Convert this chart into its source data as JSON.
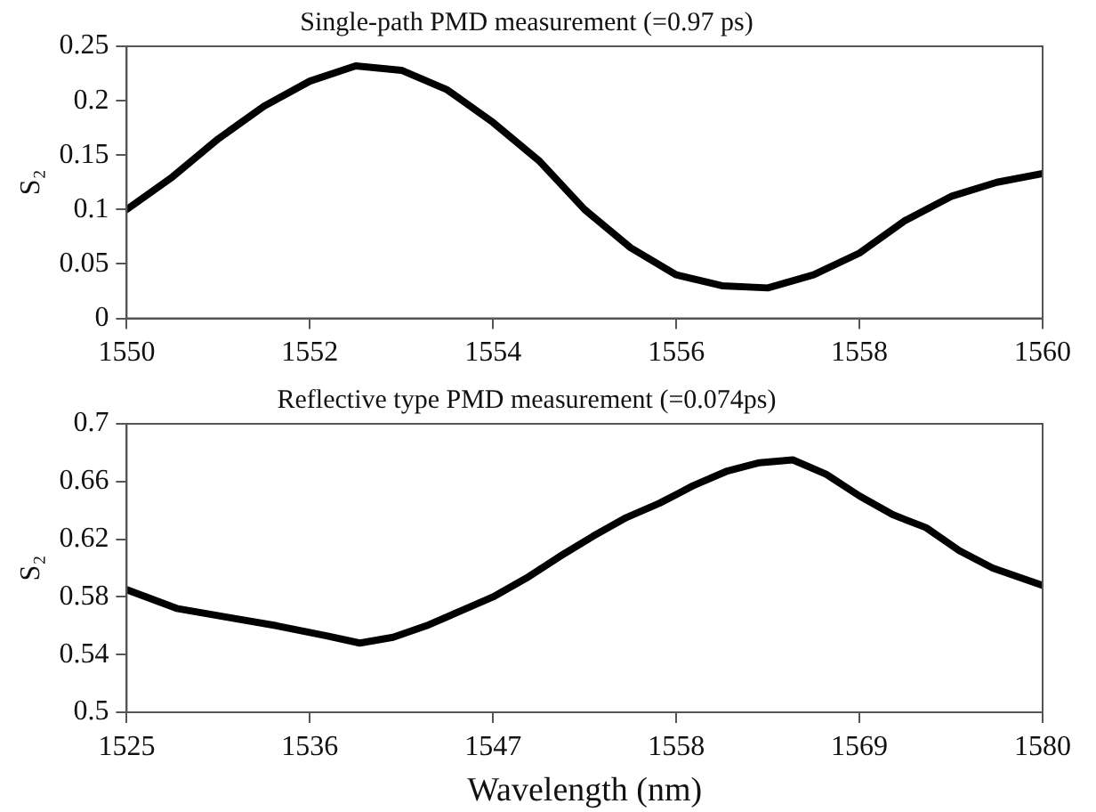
{
  "chart_data": [
    {
      "type": "line",
      "title": "Single-path PMD measurement (=0.97 ps)",
      "ylabel": "S₂",
      "xlim": [
        1550,
        1560
      ],
      "xticks": [
        1550,
        1552,
        1554,
        1556,
        1558,
        1560
      ],
      "ylim": [
        0,
        0.25
      ],
      "yticks": [
        0,
        0.05,
        0.1,
        0.15,
        0.2,
        0.25
      ],
      "grid": false,
      "legend": false,
      "marker": "none",
      "line_style": "solid",
      "x": [
        1550,
        1550.5,
        1551,
        1551.5,
        1552,
        1552.5,
        1553,
        1553.5,
        1554,
        1554.5,
        1555,
        1555.5,
        1556,
        1556.5,
        1557,
        1557.5,
        1558,
        1558.5,
        1559,
        1559.5,
        1560
      ],
      "series": [
        {
          "color": "#000000",
          "values": [
            0.1,
            0.13,
            0.165,
            0.195,
            0.218,
            0.232,
            0.228,
            0.21,
            0.18,
            0.145,
            0.1,
            0.065,
            0.04,
            0.03,
            0.028,
            0.04,
            0.06,
            0.09,
            0.112,
            0.125,
            0.133
          ]
        }
      ]
    },
    {
      "type": "line",
      "title": "Reflective type PMD measurement (=0.074ps)",
      "xlabel": "Wavelength (nm)",
      "ylabel": "S₂",
      "xlim": [
        1525,
        1580
      ],
      "xticks": [
        1525,
        1536,
        1547,
        1558,
        1569,
        1580
      ],
      "ylim": [
        0.5,
        0.7
      ],
      "yticks": [
        0.5,
        0.54,
        0.58,
        0.62,
        0.66,
        0.7
      ],
      "grid": false,
      "legend": false,
      "marker": "none",
      "line_style": "solid",
      "x": [
        1525,
        1528,
        1531,
        1534,
        1537,
        1539,
        1541,
        1543,
        1545,
        1547,
        1549,
        1551,
        1553,
        1555,
        1557,
        1559,
        1561,
        1563,
        1565,
        1567,
        1569,
        1571,
        1573,
        1575,
        1577,
        1579,
        1580
      ],
      "series": [
        {
          "color": "#000000",
          "values": [
            0.585,
            0.572,
            0.566,
            0.56,
            0.553,
            0.548,
            0.552,
            0.56,
            0.57,
            0.58,
            0.593,
            0.608,
            0.622,
            0.635,
            0.645,
            0.657,
            0.667,
            0.673,
            0.675,
            0.665,
            0.65,
            0.637,
            0.628,
            0.612,
            0.6,
            0.592,
            0.588
          ]
        }
      ]
    }
  ]
}
